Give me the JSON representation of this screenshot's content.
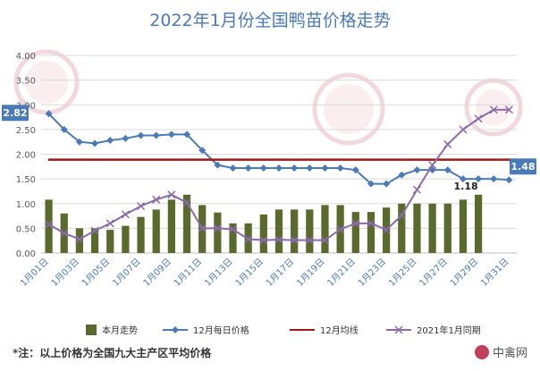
{
  "title": "2022年1月份全国鸭苗价格走势",
  "footnote": "*注：以上价格为全国九大主产区平均价格",
  "brand": "中禽网",
  "colors": {
    "bar": "#5a6a2c",
    "daily_line": "#4a7ab8",
    "avg_line": "#a01818",
    "prev_year_line": "#8a6aa8",
    "callout_bg": "#4a7ab8"
  },
  "chart_data": {
    "type": "bar+line",
    "title": "2022年1月份全国鸭苗价格走势",
    "ylim": [
      0,
      4
    ],
    "yticks": [
      "0.00",
      "0.50",
      "1.00",
      "1.50",
      "2.00",
      "2.50",
      "3.00",
      "3.50",
      "4.00"
    ],
    "categories": [
      "1月01日",
      "1月02日",
      "1月03日",
      "1月04日",
      "1月05日",
      "1月06日",
      "1月07日",
      "1月08日",
      "1月09日",
      "1月10日",
      "1月11日",
      "1月12日",
      "1月13日",
      "1月14日",
      "1月15日",
      "1月16日",
      "1月17日",
      "1月18日",
      "1月19日",
      "1月20日",
      "1月21日",
      "1月22日",
      "1月23日",
      "1月24日",
      "1月25日",
      "1月26日",
      "1月27日",
      "1月28日",
      "1月29日",
      "1月30日",
      "1月31日"
    ],
    "x_tick_labels": [
      "1月01日",
      "1月03日",
      "1月05日",
      "1月07日",
      "1月09日",
      "1月11日",
      "1月13日",
      "1月15日",
      "1月17日",
      "1月19日",
      "1月21日",
      "1月23日",
      "1月25日",
      "1月27日",
      "1月29日",
      "1月31日"
    ],
    "series": [
      {
        "name": "本月走势",
        "type": "bar",
        "values": [
          1.08,
          0.8,
          0.5,
          0.5,
          0.47,
          0.55,
          0.73,
          0.88,
          1.08,
          1.18,
          0.97,
          0.82,
          0.6,
          0.6,
          0.78,
          0.88,
          0.88,
          0.88,
          0.97,
          0.97,
          0.83,
          0.83,
          0.92,
          1.0,
          1.0,
          1.0,
          1.0,
          1.08,
          1.18,
          null,
          null
        ]
      },
      {
        "name": "12月每日价格",
        "type": "line",
        "values": [
          2.82,
          2.5,
          2.25,
          2.22,
          2.28,
          2.32,
          2.38,
          2.38,
          2.4,
          2.4,
          2.08,
          1.78,
          1.72,
          1.72,
          1.72,
          1.72,
          1.72,
          1.72,
          1.72,
          1.72,
          1.68,
          1.4,
          1.4,
          1.58,
          1.68,
          1.68,
          1.68,
          1.5,
          1.5,
          1.5,
          1.48
        ]
      },
      {
        "name": "12月均线",
        "type": "line",
        "values": [
          1.89,
          1.89,
          1.89,
          1.89,
          1.89,
          1.89,
          1.89,
          1.89,
          1.89,
          1.89,
          1.89,
          1.89,
          1.89,
          1.89,
          1.89,
          1.89,
          1.89,
          1.89,
          1.89,
          1.89,
          1.89,
          1.89,
          1.89,
          1.89,
          1.89,
          1.89,
          1.89,
          1.89,
          1.89,
          1.89,
          1.89
        ]
      },
      {
        "name": "2021年1月同期",
        "type": "line",
        "values": [
          0.58,
          0.4,
          0.28,
          0.45,
          0.6,
          0.78,
          0.95,
          1.08,
          1.18,
          1.02,
          0.5,
          0.5,
          0.48,
          0.28,
          0.26,
          0.27,
          0.26,
          0.26,
          0.26,
          0.48,
          0.6,
          0.6,
          0.47,
          0.76,
          1.28,
          1.78,
          2.2,
          2.5,
          2.72,
          2.9,
          2.9
        ]
      }
    ],
    "annotations": [
      {
        "text": "2.82",
        "category": "1月01日",
        "value": 2.82,
        "style": "callout"
      },
      {
        "text": "1.18",
        "category": "1月29日",
        "value": 1.18,
        "style": "plain"
      },
      {
        "text": "1.48",
        "category": "1月31日",
        "value": 1.48,
        "style": "callout"
      }
    ],
    "legend_position": "bottom",
    "grid": true
  }
}
